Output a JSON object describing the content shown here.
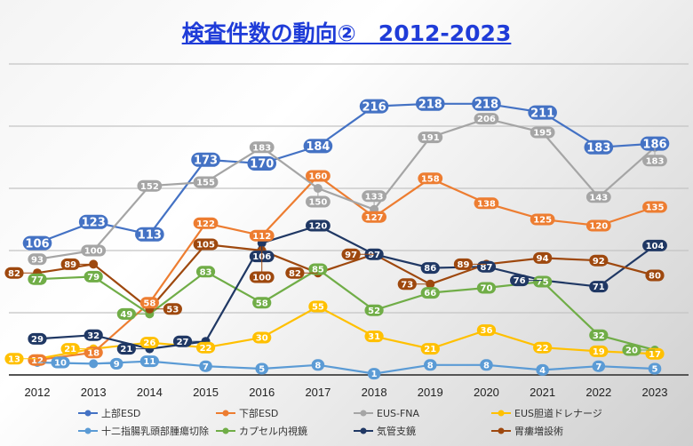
{
  "chart_data": {
    "type": "line",
    "title": "検査件数の動向②　2012-2023",
    "x": [
      "2012",
      "2013",
      "2014",
      "2015",
      "2016",
      "2017",
      "2018",
      "2019",
      "2020",
      "2021",
      "2022",
      "2023"
    ],
    "ylim": [
      0,
      250
    ],
    "grid": true,
    "legend_position": "bottom",
    "series": [
      {
        "name": "上部ESD",
        "color": "#4472c4",
        "values": [
          106,
          123,
          113,
          173,
          170,
          184,
          216,
          218,
          218,
          211,
          183,
          186
        ]
      },
      {
        "name": "下部ESD",
        "color": "#ed7d31",
        "values": [
          12,
          18,
          58,
          122,
          112,
          160,
          127,
          158,
          138,
          125,
          120,
          135
        ]
      },
      {
        "name": "EUS-FNA",
        "color": "#a5a5a5",
        "values": [
          93,
          100,
          152,
          155,
          183,
          150,
          133,
          191,
          206,
          195,
          143,
          183
        ]
      },
      {
        "name": "EUS胆道ドレナージ",
        "color": "#ffc000",
        "values": [
          13,
          21,
          26,
          22,
          30,
          55,
          31,
          21,
          36,
          22,
          19,
          17
        ]
      },
      {
        "name": "十二指腸乳頭部腫瘍切除",
        "color": "#5b9bd5",
        "values": [
          10,
          9,
          11,
          7,
          5,
          8,
          1,
          8,
          8,
          4,
          7,
          5
        ]
      },
      {
        "name": "カプセル内視鏡",
        "color": "#70ad47",
        "values": [
          77,
          79,
          49,
          83,
          58,
          85,
          52,
          66,
          70,
          75,
          32,
          20
        ]
      },
      {
        "name": "気管支鏡",
        "color": "#203864",
        "values": [
          29,
          32,
          21,
          27,
          106,
          120,
          97,
          86,
          87,
          76,
          71,
          104
        ]
      },
      {
        "name": "胃瘻増設術",
        "color": "#9e480e",
        "values": [
          82,
          89,
          53,
          105,
          100,
          82,
          97,
          73,
          89,
          94,
          92,
          80
        ]
      }
    ]
  }
}
